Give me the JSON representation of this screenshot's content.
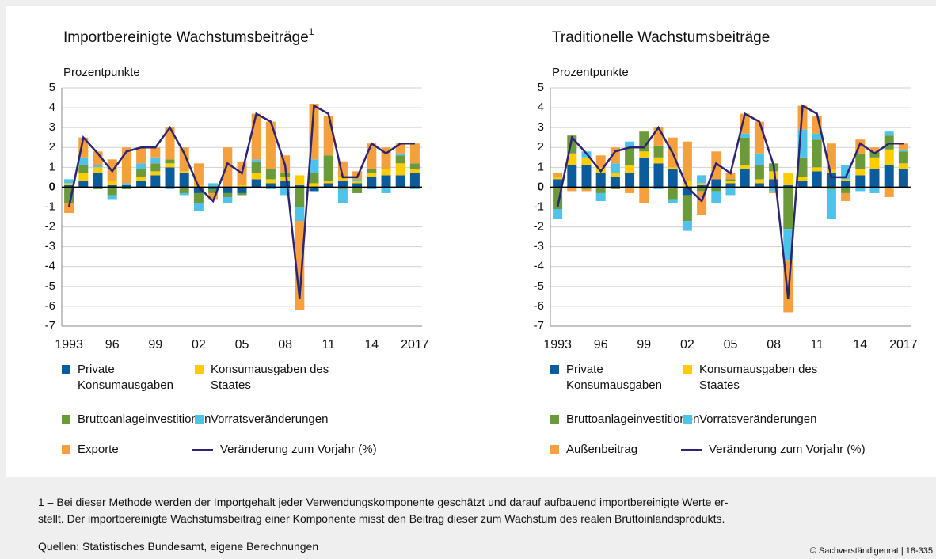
{
  "chart_data": [
    {
      "type": "bar",
      "stacked": true,
      "title": "Importbereinigte Wachstumsbeiträge",
      "title_note": "1",
      "y_label": "Prozentpunkte",
      "categories": [
        "1993",
        null,
        null,
        "96",
        null,
        null,
        "99",
        null,
        null,
        "02",
        null,
        null,
        "05",
        null,
        null,
        "08",
        null,
        null,
        "11",
        null,
        null,
        "14",
        null,
        null,
        "2017"
      ],
      "ylim": [
        -7,
        5
      ],
      "yticks": [
        5,
        4,
        3,
        2,
        1,
        0,
        -1,
        -2,
        -3,
        -4,
        -5,
        -6,
        -7
      ],
      "grid": true,
      "series": [
        {
          "name": "Private Konsumausgaben",
          "color": "#0b5c9c",
          "values": [
            0.1,
            0.3,
            0.7,
            0.1,
            0.1,
            0.3,
            0.6,
            1.0,
            0.7,
            -0.3,
            -0.1,
            -0.3,
            -0.3,
            0.4,
            0.2,
            0.3,
            0.1,
            -0.2,
            0.2,
            0.3,
            0.2,
            0.5,
            0.6,
            0.6,
            0.7
          ]
        },
        {
          "name": "Konsumausgaben des Staates",
          "color": "#ffcc00",
          "values": [
            0.1,
            0.4,
            0.3,
            0.2,
            0.0,
            0.2,
            0.2,
            0.2,
            0.1,
            0.1,
            0.0,
            0.0,
            0.1,
            0.3,
            0.2,
            0.2,
            0.5,
            0.2,
            0.1,
            0.2,
            0.1,
            0.2,
            0.3,
            0.6,
            0.2
          ]
        },
        {
          "name": "Bruttoanlageinvestitionen",
          "color": "#6b9a3a",
          "values": [
            -0.8,
            0.4,
            -0.1,
            -0.4,
            -0.1,
            0.4,
            0.4,
            0.2,
            -0.3,
            -0.5,
            -0.2,
            -0.2,
            -0.1,
            0.6,
            0.5,
            0.2,
            -1.0,
            0.5,
            1.3,
            -0.1,
            -0.3,
            0.2,
            0.0,
            0.4,
            0.3
          ]
        },
        {
          "name": "Vorratsveränderungen",
          "color": "#4dc3ea",
          "values": [
            0.2,
            0.4,
            0.1,
            -0.2,
            0.1,
            0.3,
            0.3,
            -0.1,
            -0.1,
            -0.4,
            0.2,
            -0.3,
            0.0,
            0.1,
            -0.1,
            -0.4,
            -0.7,
            0.7,
            0.0,
            -0.7,
            0.1,
            -0.1,
            -0.3,
            0.1,
            -0.1
          ]
        },
        {
          "name": "Exporte",
          "color": "#f5a03c",
          "values": [
            -0.5,
            1.0,
            0.7,
            1.1,
            1.8,
            0.8,
            0.5,
            1.6,
            1.2,
            1.1,
            -0.3,
            2.0,
            1.2,
            2.3,
            2.4,
            0.9,
            -4.5,
            2.8,
            2.0,
            0.8,
            0.4,
            1.3,
            1.1,
            0.5,
            1.0
          ]
        },
        {
          "name": "Veränderung zum Vorjahr (%)",
          "type": "line",
          "color": "#2e2474",
          "values": [
            -1.0,
            2.5,
            1.7,
            0.8,
            1.8,
            2.0,
            2.0,
            3.0,
            1.7,
            0.0,
            -0.7,
            1.2,
            0.7,
            3.7,
            3.3,
            1.1,
            -5.6,
            4.1,
            3.7,
            0.5,
            0.5,
            2.2,
            1.7,
            2.2,
            2.2
          ]
        }
      ]
    },
    {
      "type": "bar",
      "stacked": true,
      "title": "Traditionelle Wachstumsbeiträge",
      "y_label": "Prozentpunkte",
      "categories": [
        "1993",
        null,
        null,
        "96",
        null,
        null,
        "99",
        null,
        null,
        "02",
        null,
        null,
        "05",
        null,
        null,
        "08",
        null,
        null,
        "11",
        null,
        null,
        "14",
        null,
        null,
        "2017"
      ],
      "ylim": [
        -7,
        5
      ],
      "yticks": [
        5,
        4,
        3,
        2,
        1,
        0,
        -1,
        -2,
        -3,
        -4,
        -5,
        -6,
        -7
      ],
      "grid": true,
      "series": [
        {
          "name": "Private Konsumausgaben",
          "color": "#0b5c9c",
          "values": [
            0.4,
            1.1,
            1.1,
            0.7,
            0.5,
            0.7,
            1.5,
            1.2,
            0.9,
            -0.4,
            0.1,
            0.4,
            0.2,
            0.9,
            0.2,
            0.4,
            0.1,
            0.3,
            0.8,
            0.7,
            0.3,
            0.6,
            0.9,
            1.1,
            0.9
          ]
        },
        {
          "name": "Konsumausgaben des Staates",
          "color": "#ffcc00",
          "values": [
            0.1,
            0.6,
            0.4,
            0.3,
            0.2,
            0.4,
            0.3,
            0.3,
            0.1,
            0.3,
            0.1,
            0.0,
            0.1,
            0.2,
            0.2,
            0.4,
            0.6,
            0.2,
            0.2,
            0.2,
            0.1,
            0.3,
            0.6,
            0.8,
            0.3
          ]
        },
        {
          "name": "Bruttoanlageinvestitionen",
          "color": "#6b9a3a",
          "values": [
            -1.1,
            0.9,
            -0.1,
            -0.3,
            -0.1,
            0.9,
            1.0,
            0.6,
            -0.6,
            -1.3,
            -0.2,
            -0.2,
            0.1,
            1.4,
            0.7,
            0.4,
            -2.1,
            1.0,
            1.4,
            -0.1,
            -0.3,
            0.8,
            0.3,
            0.7,
            0.6
          ]
        },
        {
          "name": "Vorratsveränderungen",
          "color": "#4dc3ea",
          "values": [
            -0.5,
            0.0,
            0.3,
            -0.4,
            0.5,
            0.3,
            0.0,
            -0.1,
            -0.2,
            -0.5,
            0.4,
            -0.6,
            -0.4,
            0.2,
            0.6,
            -0.2,
            -1.6,
            1.4,
            0.3,
            -1.5,
            0.7,
            -0.2,
            -0.3,
            0.2,
            0.1
          ]
        },
        {
          "name": "Außenbeitrag",
          "color": "#f5a03c",
          "values": [
            0.2,
            -0.2,
            -0.1,
            0.6,
            0.8,
            -0.3,
            -0.8,
            0.9,
            1.5,
            2.0,
            -1.2,
            1.4,
            0.3,
            1.0,
            1.6,
            -0.1,
            -2.6,
            1.2,
            0.9,
            1.3,
            -0.4,
            0.7,
            0.2,
            -0.5,
            0.3
          ]
        },
        {
          "name": "Veränderung zum Vorjahr (%)",
          "type": "line",
          "color": "#2e2474",
          "values": [
            -1.0,
            2.5,
            1.7,
            0.8,
            1.8,
            2.0,
            2.0,
            3.0,
            1.7,
            0.0,
            -0.7,
            1.2,
            0.7,
            3.7,
            3.3,
            1.1,
            -5.6,
            4.1,
            3.7,
            0.5,
            0.5,
            2.2,
            1.7,
            2.2,
            2.2
          ]
        }
      ]
    }
  ],
  "footer": {
    "footnote": [
      "1 –  Bei dieser Methode werden der Importgehalt jeder Verwendungskomponente geschätzt und darauf aufbauend importbereinigte Werte er-",
      "stellt. Der importbereinigte Wachstumsbeitrag einer Komponente misst den Beitrag dieser zum Wachstum des realen Bruttoinlandsprodukts."
    ],
    "sources": "Quellen: Statistisches Bundesamt, eigene Berechnungen",
    "copyright": "© Sachverständigenrat | 18-335"
  }
}
